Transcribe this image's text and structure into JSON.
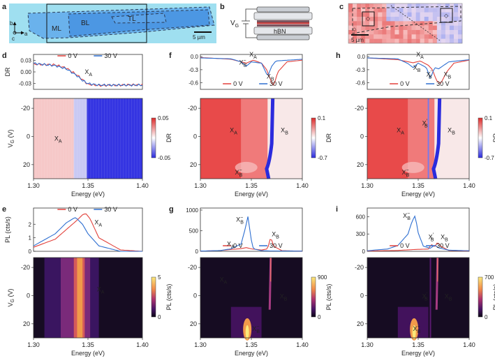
{
  "figure": {
    "panel_letters": [
      "a",
      "b",
      "c",
      "d",
      "e",
      "f",
      "g",
      "h",
      "i"
    ],
    "colors": {
      "red": "#e2413b",
      "blue": "#2e6fd1",
      "heat_hi": "#dd2b2b",
      "heat_lo": "#2b2bdd"
    }
  },
  "panel_a": {
    "labels": [
      "ML",
      "BL",
      "TL"
    ],
    "axes": [
      "b",
      "a",
      "c"
    ],
    "scalebar": "5 µm"
  },
  "panel_b": {
    "labels": [
      "V",
      "G",
      "hBN"
    ]
  },
  "panel_c": {
    "scalebar": "5 µm"
  },
  "chart_data": [
    {
      "id": "d_top",
      "type": "line",
      "ylabel": "DR",
      "yticks": [
        "0.03",
        "0.00",
        "-0.03"
      ],
      "ylim": [
        -0.045,
        0.045
      ],
      "xlim": [
        1.3,
        1.4
      ],
      "legend": [
        "0 V",
        "30 V"
      ],
      "annotations": [
        {
          "text": "X",
          "sub": "A",
          "x": 1.347,
          "y": -0.005
        }
      ],
      "series": [
        {
          "name": "0 V",
          "color": "red",
          "x": [
            1.3,
            1.32,
            1.33,
            1.34,
            1.345,
            1.35,
            1.36,
            1.4
          ],
          "values": [
            0.02,
            0.018,
            0.01,
            -0.008,
            -0.02,
            -0.032,
            -0.035,
            -0.033
          ]
        },
        {
          "name": "30 V",
          "color": "blue",
          "x": [
            1.3,
            1.32,
            1.33,
            1.34,
            1.345,
            1.35,
            1.36,
            1.4
          ],
          "values": [
            0.022,
            0.016,
            0.008,
            -0.01,
            -0.022,
            -0.03,
            -0.034,
            -0.034
          ]
        }
      ]
    },
    {
      "id": "d_map",
      "type": "heatmap",
      "colormap": "bwr",
      "ylabel": "V_G (V)",
      "yticks": [
        "-20",
        "0",
        "20"
      ],
      "ylim": [
        -27,
        30
      ],
      "xlabel": "Energy (eV)",
      "xticks": [
        "1.30",
        "1.35",
        "1.40"
      ],
      "xlim": [
        1.3,
        1.4
      ],
      "colorbar": {
        "label": "DR",
        "ticks": [
          "0.05",
          "-0.05"
        ]
      },
      "annotations": [
        {
          "text": "X",
          "sub": "A",
          "x": 1.323,
          "y": 3
        }
      ]
    },
    {
      "id": "e_top",
      "type": "line",
      "ylabel": "PL (cts/s)",
      "yticks": [
        "2",
        "1",
        "0"
      ],
      "ylim": [
        0,
        3.2
      ],
      "xlim": [
        1.3,
        1.4
      ],
      "legend": [
        "0 V",
        "30 V"
      ],
      "annotations": [
        {
          "text": "X",
          "sub": "A",
          "x": 1.356,
          "y": 2.0
        }
      ],
      "series": [
        {
          "name": "0 V",
          "color": "red",
          "x": [
            1.3,
            1.32,
            1.33,
            1.34,
            1.345,
            1.348,
            1.352,
            1.36,
            1.38,
            1.4
          ],
          "values": [
            0.3,
            0.9,
            1.6,
            2.3,
            2.7,
            2.8,
            2.4,
            1.0,
            0.1,
            0.0
          ]
        },
        {
          "name": "30 V",
          "color": "blue",
          "x": [
            1.3,
            1.32,
            1.33,
            1.338,
            1.34,
            1.345,
            1.35,
            1.36,
            1.38,
            1.4
          ],
          "values": [
            0.4,
            1.3,
            2.1,
            2.5,
            2.4,
            2.0,
            1.3,
            0.4,
            0.0,
            0.0
          ]
        }
      ]
    },
    {
      "id": "e_map",
      "type": "heatmap",
      "colormap": "magma",
      "ylabel": "V_G (V)",
      "yticks": [
        "-20",
        "0",
        "20"
      ],
      "ylim": [
        -27,
        30
      ],
      "xlabel": "Energy (eV)",
      "xticks": [
        "1.30",
        "1.35",
        "1.40"
      ],
      "xlim": [
        1.3,
        1.4
      ],
      "colorbar": {
        "label": "PL (cts/s)",
        "ticks": [
          "5",
          "0"
        ]
      },
      "annotations": [
        {
          "text": "X",
          "sub": "A",
          "x": 1.362,
          "y": -3
        }
      ]
    },
    {
      "id": "f_top",
      "type": "line",
      "ylabel": "",
      "yticks": [
        "0.0",
        "-0.3",
        "-0.6"
      ],
      "ylim": [
        -0.75,
        0.05
      ],
      "xlim": [
        1.3,
        1.4
      ],
      "legend": [
        "0 V",
        "30 V"
      ],
      "annotations": [
        {
          "text": "X",
          "sub": "A",
          "x": 1.348,
          "y": 0.0
        },
        {
          "text": "X",
          "sub": "B",
          "sup": "−",
          "x": 1.338,
          "y": -0.18
        },
        {
          "text": "X",
          "sub": "B",
          "x": 1.365,
          "y": -0.5
        }
      ],
      "series": [
        {
          "name": "0 V",
          "color": "red",
          "x": [
            1.3,
            1.33,
            1.345,
            1.352,
            1.36,
            1.365,
            1.37,
            1.372,
            1.376,
            1.385,
            1.4
          ],
          "values": [
            -0.02,
            -0.06,
            -0.15,
            -0.08,
            -0.15,
            -0.3,
            -0.6,
            -0.66,
            -0.35,
            -0.12,
            -0.08
          ]
        },
        {
          "name": "30 V",
          "color": "blue",
          "x": [
            1.3,
            1.33,
            1.34,
            1.345,
            1.35,
            1.36,
            1.366,
            1.37,
            1.374,
            1.38,
            1.4
          ],
          "values": [
            -0.03,
            -0.05,
            -0.12,
            -0.22,
            -0.12,
            -0.15,
            -0.45,
            -0.22,
            -0.1,
            -0.09,
            -0.06
          ]
        }
      ]
    },
    {
      "id": "f_map",
      "type": "heatmap",
      "colormap": "bwr",
      "ylabel": "",
      "yticks": [
        "-20",
        "0",
        "20"
      ],
      "ylim": [
        -27,
        30
      ],
      "xlabel": "Energy (eV)",
      "xticks": [
        "1.30",
        "1.35",
        "1.40"
      ],
      "xlim": [
        1.3,
        1.4
      ],
      "colorbar": {
        "label": "DR",
        "ticks": [
          "0.1",
          "-0.7"
        ]
      },
      "annotations": [
        {
          "text": "X",
          "sub": "A",
          "x": 1.333,
          "y": -3
        },
        {
          "text": "X",
          "sub": "B",
          "x": 1.383,
          "y": -3
        },
        {
          "text": "X",
          "sub": "B",
          "sup": "−",
          "x": 1.338,
          "y": 27
        }
      ]
    },
    {
      "id": "g_top",
      "type": "line",
      "ylabel": "",
      "yticks": [
        "1000",
        "500",
        "0"
      ],
      "ylim": [
        0,
        1050
      ],
      "xlim": [
        1.3,
        1.4
      ],
      "legend": [
        "0 V",
        "30 V"
      ],
      "annotations": [
        {
          "text": "X",
          "sub": "A",
          "x": 1.326,
          "y": 130
        },
        {
          "text": "X",
          "sub": "B",
          "sup": "−",
          "x": 1.335,
          "y": 720
        },
        {
          "text": "X",
          "sub": "B",
          "x": 1.37,
          "y": 360
        }
      ],
      "series": [
        {
          "name": "0 V",
          "color": "red",
          "x": [
            1.3,
            1.32,
            1.33,
            1.34,
            1.345,
            1.35,
            1.36,
            1.366,
            1.369,
            1.372,
            1.38,
            1.4
          ],
          "values": [
            5,
            20,
            45,
            65,
            90,
            60,
            30,
            60,
            350,
            120,
            15,
            5
          ]
        },
        {
          "name": "30 V",
          "color": "blue",
          "x": [
            1.3,
            1.32,
            1.33,
            1.34,
            1.344,
            1.347,
            1.349,
            1.352,
            1.36,
            1.37,
            1.4
          ],
          "values": [
            5,
            20,
            60,
            180,
            550,
            880,
            380,
            60,
            15,
            8,
            5
          ]
        }
      ]
    },
    {
      "id": "g_map",
      "type": "heatmap",
      "colormap": "magma",
      "ylabel": "",
      "yticks": [
        "-20",
        "0",
        "20"
      ],
      "ylim": [
        -27,
        30
      ],
      "xlabel": "Energy (eV)",
      "xticks": [
        "1.30",
        "1.35",
        "1.40"
      ],
      "xlim": [
        1.3,
        1.4
      ],
      "colorbar": {
        "label": "PL (cts/s)",
        "ticks": [
          "900",
          "0"
        ]
      },
      "annotations": [
        {
          "text": "X",
          "sub": "A",
          "x": 1.323,
          "y": -10
        },
        {
          "text": "X",
          "sub": "B",
          "x": 1.382,
          "y": 2
        },
        {
          "text": "X",
          "sub": "B",
          "sup": "−",
          "x": 1.355,
          "y": 25
        }
      ]
    },
    {
      "id": "h_top",
      "type": "line",
      "ylabel": "",
      "yticks": [
        "0.0",
        "-0.3",
        "-0.6"
      ],
      "ylim": [
        -0.75,
        0.05
      ],
      "xlim": [
        1.3,
        1.4
      ],
      "legend": [
        "0 V",
        "30 V"
      ],
      "annotations": [
        {
          "text": "X",
          "sub": "A",
          "x": 1.348,
          "y": 0.0
        },
        {
          "text": "X",
          "sub": "B",
          "x": 1.345,
          "y": -0.3
        },
        {
          "text": "X",
          "sub": "B",
          "sup": "′",
          "x": 1.358,
          "y": -0.45
        },
        {
          "text": "X",
          "sub": "B",
          "x": 1.375,
          "y": -0.45
        }
      ],
      "series": [
        {
          "name": "0 V",
          "color": "red",
          "x": [
            1.3,
            1.33,
            1.345,
            1.352,
            1.36,
            1.364,
            1.368,
            1.372,
            1.378,
            1.385,
            1.4
          ],
          "values": [
            -0.03,
            -0.07,
            -0.14,
            -0.1,
            -0.2,
            -0.3,
            -0.55,
            -0.62,
            -0.35,
            -0.15,
            -0.08
          ]
        },
        {
          "name": "30 V",
          "color": "blue",
          "x": [
            1.3,
            1.33,
            1.34,
            1.345,
            1.35,
            1.358,
            1.362,
            1.366,
            1.37,
            1.38,
            1.4
          ],
          "values": [
            -0.03,
            -0.05,
            -0.16,
            -0.25,
            -0.15,
            -0.25,
            -0.5,
            -0.25,
            -0.28,
            -0.12,
            -0.07
          ]
        }
      ]
    },
    {
      "id": "h_map",
      "type": "heatmap",
      "colormap": "bwr",
      "ylabel": "",
      "yticks": [
        "-20",
        "0",
        "20"
      ],
      "ylim": [
        -27,
        30
      ],
      "xlabel": "Energy (eV)",
      "xticks": [
        "1.30",
        "1.35",
        "1.40"
      ],
      "xlim": [
        1.3,
        1.4
      ],
      "colorbar": {
        "label": "DR",
        "ticks": [
          "0.1",
          "-0.7"
        ]
      },
      "annotations": [
        {
          "text": "X",
          "sub": "A",
          "x": 1.333,
          "y": -3
        },
        {
          "text": "X",
          "sub": "B",
          "sup": "′",
          "x": 1.358,
          "y": -8
        },
        {
          "text": "X",
          "sub": "B",
          "x": 1.383,
          "y": -3
        },
        {
          "text": "X",
          "sub": "B",
          "sup": "−",
          "x": 1.338,
          "y": 27
        }
      ]
    },
    {
      "id": "i_top",
      "type": "line",
      "ylabel": "",
      "yticks": [
        "600",
        "300",
        "0"
      ],
      "ylim": [
        0,
        750
      ],
      "xlim": [
        1.3,
        1.4
      ],
      "legend": [
        "0 V",
        "30 V"
      ],
      "annotations": [
        {
          "text": "X",
          "sub": "B",
          "sup": "−",
          "x": 1.335,
          "y": 580
        },
        {
          "text": "X",
          "sub": "B",
          "sup": "′",
          "x": 1.36,
          "y": 210
        },
        {
          "text": "X",
          "sub": "B",
          "x": 1.372,
          "y": 210
        }
      ],
      "series": [
        {
          "name": "0 V",
          "color": "red",
          "x": [
            1.3,
            1.33,
            1.345,
            1.36,
            1.363,
            1.366,
            1.369,
            1.372,
            1.38,
            1.4
          ],
          "values": [
            5,
            15,
            30,
            40,
            120,
            70,
            160,
            90,
            15,
            5
          ]
        },
        {
          "name": "30 V",
          "color": "blue",
          "x": [
            1.3,
            1.32,
            1.33,
            1.34,
            1.344,
            1.347,
            1.35,
            1.355,
            1.362,
            1.366,
            1.37,
            1.38,
            1.4
          ],
          "values": [
            10,
            40,
            100,
            300,
            520,
            620,
            320,
            90,
            50,
            110,
            60,
            20,
            10
          ]
        }
      ]
    },
    {
      "id": "i_map",
      "type": "heatmap",
      "colormap": "magma",
      "ylabel": "",
      "yticks": [
        "-20",
        "0",
        "20"
      ],
      "ylim": [
        -27,
        30
      ],
      "xlabel": "Energy (eV)",
      "xticks": [
        "1.30",
        "1.35",
        "1.40"
      ],
      "xlim": [
        1.3,
        1.4
      ],
      "colorbar": {
        "label": "PL (cts/s)",
        "ticks": [
          "700",
          "0"
        ]
      },
      "annotations": [
        {
          "text": "X",
          "sub": "B",
          "sup": "′",
          "x": 1.358,
          "y": 2
        },
        {
          "text": "X",
          "sub": "B",
          "x": 1.38,
          "y": 2
        },
        {
          "text": "X",
          "sub": "B",
          "sup": "−",
          "x": 1.349,
          "y": 25
        }
      ]
    }
  ]
}
